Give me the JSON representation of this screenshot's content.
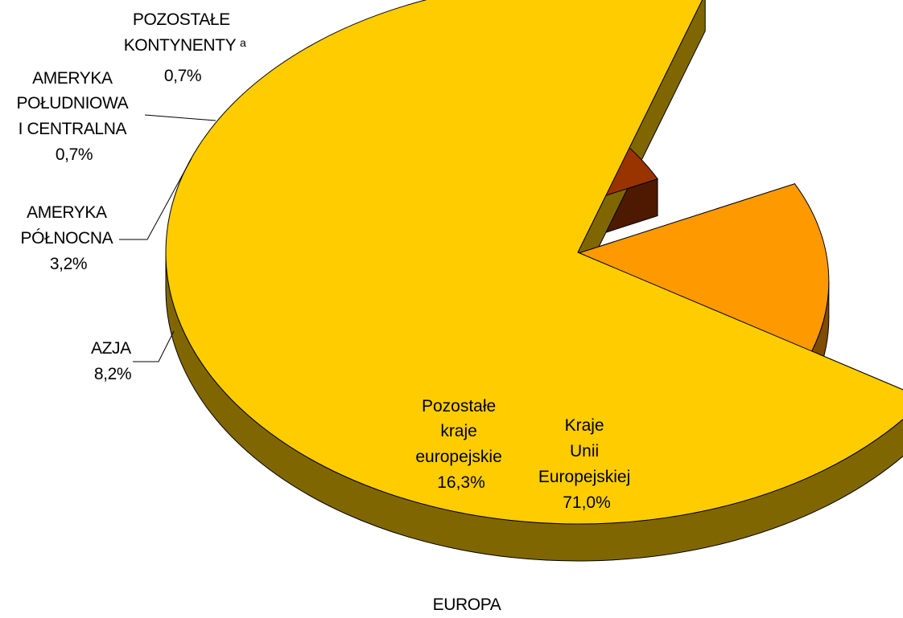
{
  "chart_data": {
    "type": "pie",
    "style": "3d-exploded",
    "title": "",
    "slices": [
      {
        "name": "Kraje Unii Europejskiej",
        "value": 71.0,
        "label": "71,0%",
        "color": "#FFCC00",
        "side_color": "#806600"
      },
      {
        "name": "Pozostałe kraje europejskie",
        "value": 16.3,
        "label": "16,3%",
        "color": "#FF9900",
        "side_color": "#804C00"
      },
      {
        "name": "AZJA",
        "value": 8.2,
        "label": "8,2%",
        "color": "#993300",
        "side_color": "#4D1900"
      },
      {
        "name": "AMERYKA PÓŁNOCNA",
        "value": 3.2,
        "label": "3,2%",
        "color": "#FF0000",
        "side_color": "#800000"
      },
      {
        "name": "AMERYKA POŁUDNIOWA I CENTRALNA",
        "value": 0.7,
        "label": "0,7%",
        "color": "#99CC00",
        "side_color": "#4D6600"
      },
      {
        "name": "POZOSTAŁE KONTYNENTY",
        "value": 0.7,
        "label": "0,7%",
        "color": "#3366FF",
        "side_color": "#1A3380"
      }
    ],
    "group_label": "EUROPA",
    "footnote_marker": "a"
  },
  "labels": {
    "eu_lines": [
      "Kraje",
      "Unii",
      "Europejskiej",
      "71,0%"
    ],
    "other_eu_lines": [
      "Pozostałe",
      "kraje",
      "europejskie",
      "16,3%"
    ],
    "asia_lines": [
      "AZJA",
      "8,2%"
    ],
    "north_am_lines": [
      "AMERYKA",
      "PÓŁNOCNA",
      "3,2%"
    ],
    "south_am_lines": [
      "AMERYKA",
      "POŁUDNIOWA",
      "I CENTRALNA",
      "0,7%"
    ],
    "other_cont_line1": "POZOSTAŁE",
    "other_cont_line2": "KONTYNENTY",
    "other_cont_sup": "a",
    "other_cont_value": "0,7%",
    "europa": "EUROPA"
  }
}
